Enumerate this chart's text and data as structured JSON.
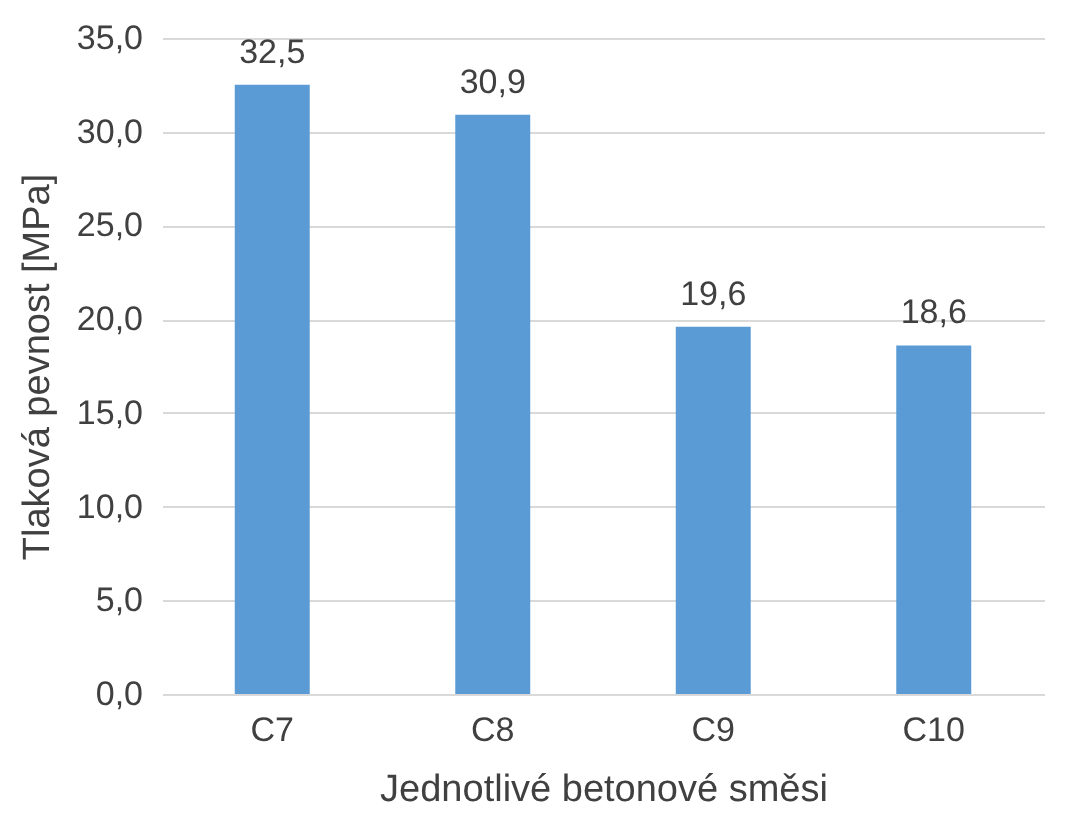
{
  "chart_data": {
    "type": "bar",
    "xlabel": "Jednotlivé betonové směsi",
    "ylabel": "Tlaková pevnost [MPa]",
    "categories": [
      "C7",
      "C8",
      "C9",
      "C10"
    ],
    "values": [
      32.5,
      30.9,
      19.6,
      18.6
    ],
    "value_labels": [
      "32,5",
      "30,9",
      "19,6",
      "18,6"
    ],
    "color": "#5b9bd5",
    "ylim": [
      0,
      35
    ],
    "yticks": [
      {
        "value": 0,
        "label": "0,0"
      },
      {
        "value": 5,
        "label": "5,0"
      },
      {
        "value": 10,
        "label": "10,0"
      },
      {
        "value": 15,
        "label": "15,0"
      },
      {
        "value": 20,
        "label": "20,0"
      },
      {
        "value": 25,
        "label": "25,0"
      },
      {
        "value": 30,
        "label": "30,0"
      },
      {
        "value": 35,
        "label": "35,0"
      }
    ],
    "grid": "y"
  }
}
